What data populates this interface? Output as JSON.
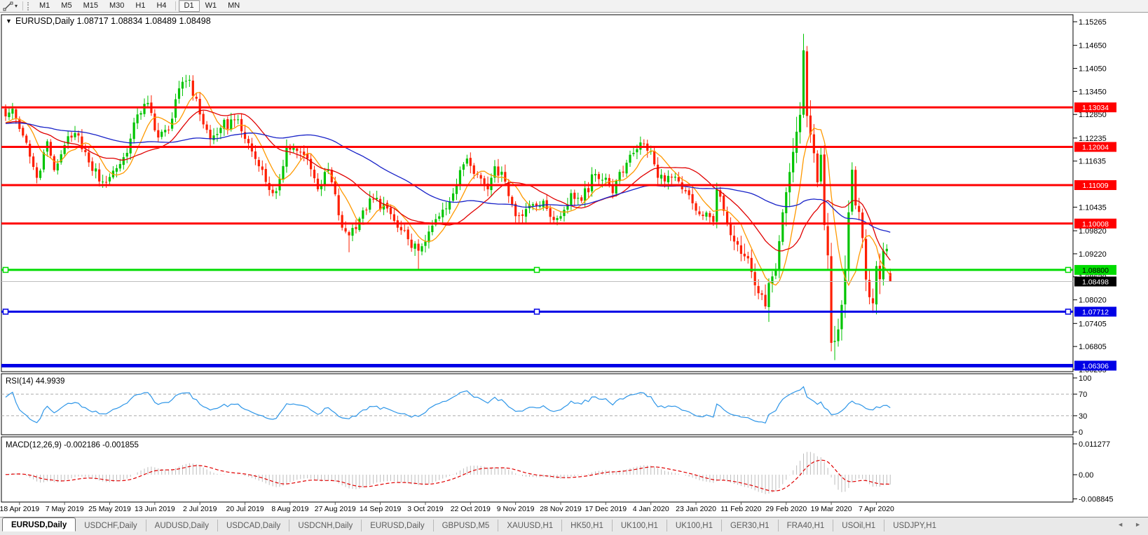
{
  "icons": {
    "dropdown_glyph": "▾",
    "symbol_marker_glyph": "▼",
    "tab_scroll_left_glyph": "◄",
    "tab_scroll_right_glyph": "►"
  },
  "toolbar": {
    "timeframes": [
      "M1",
      "M5",
      "M15",
      "M30",
      "H1",
      "H4",
      "D1",
      "W1",
      "MN"
    ],
    "selected_timeframe": "D1"
  },
  "chart_header": {
    "symbol": "EURUSD,Daily",
    "open": "1.08717",
    "high": "1.08834",
    "low": "1.08489",
    "close": "1.08498",
    "title_full": "EURUSD,Daily  1.08717 1.08834 1.08489 1.08498"
  },
  "price_axis": {
    "ticks": [
      "1.15265",
      "1.14650",
      "1.14050",
      "1.13450",
      "1.12850",
      "1.12235",
      "1.11635",
      "1.10435",
      "1.09820",
      "1.09220",
      "1.08620",
      "1.08020",
      "1.07405",
      "1.06805",
      "1.06205"
    ]
  },
  "date_axis": {
    "ticks": [
      {
        "label": "18 Apr 2019",
        "index": 4
      },
      {
        "label": "7 May 2019",
        "index": 17
      },
      {
        "label": "25 May 2019",
        "index": 30
      },
      {
        "label": "13 Jun 2019",
        "index": 43
      },
      {
        "label": "2 Jul 2019",
        "index": 56
      },
      {
        "label": "20 Jul 2019",
        "index": 69
      },
      {
        "label": "8 Aug 2019",
        "index": 82
      },
      {
        "label": "27 Aug 2019",
        "index": 95
      },
      {
        "label": "14 Sep 2019",
        "index": 108
      },
      {
        "label": "3 Oct 2019",
        "index": 121
      },
      {
        "label": "22 Oct 2019",
        "index": 134
      },
      {
        "label": "9 Nov 2019",
        "index": 147
      },
      {
        "label": "28 Nov 2019",
        "index": 160
      },
      {
        "label": "17 Dec 2019",
        "index": 173
      },
      {
        "label": "4 Jan 2020",
        "index": 186
      },
      {
        "label": "23 Jan 2020",
        "index": 199
      },
      {
        "label": "11 Feb 2020",
        "index": 212
      },
      {
        "label": "29 Feb 2020",
        "index": 225
      },
      {
        "label": "19 Mar 2020",
        "index": 238
      },
      {
        "label": "7 Apr 2020",
        "index": 251
      }
    ]
  },
  "chart_data": {
    "type": "candlestick",
    "symbol": "EURUSD",
    "timeframe": "Daily",
    "candle_count": 256,
    "last_candle": {
      "open": 1.08717,
      "high": 1.08834,
      "low": 1.08489,
      "close": 1.08498
    },
    "close_waypoints": [
      [
        0,
        1.128
      ],
      [
        2,
        1.13
      ],
      [
        5,
        1.123
      ],
      [
        9,
        1.112
      ],
      [
        12,
        1.1215
      ],
      [
        14,
        1.114
      ],
      [
        17,
        1.1205
      ],
      [
        21,
        1.123
      ],
      [
        24,
        1.116
      ],
      [
        28,
        1.111
      ],
      [
        32,
        1.1145
      ],
      [
        35,
        1.1185
      ],
      [
        38,
        1.1285
      ],
      [
        41,
        1.1315
      ],
      [
        44,
        1.1225
      ],
      [
        47,
        1.1245
      ],
      [
        51,
        1.137
      ],
      [
        53,
        1.1375
      ],
      [
        56,
        1.1285
      ],
      [
        59,
        1.122
      ],
      [
        62,
        1.125
      ],
      [
        66,
        1.127
      ],
      [
        70,
        1.121
      ],
      [
        73,
        1.115
      ],
      [
        77,
        1.108
      ],
      [
        78,
        1.1085
      ],
      [
        81,
        1.12
      ],
      [
        84,
        1.119
      ],
      [
        87,
        1.117
      ],
      [
        90,
        1.109
      ],
      [
        93,
        1.114
      ],
      [
        97,
        1.099
      ],
      [
        99,
        1.097
      ],
      [
        103,
        1.1035
      ],
      [
        106,
        1.1065
      ],
      [
        110,
        1.104
      ],
      [
        113,
        1.099
      ],
      [
        116,
        1.096
      ],
      [
        119,
        1.093
      ],
      [
        122,
        1.098
      ],
      [
        127,
        1.104
      ],
      [
        131,
        1.114
      ],
      [
        133,
        1.117
      ],
      [
        136,
        1.113
      ],
      [
        139,
        1.109
      ],
      [
        141,
        1.115
      ],
      [
        144,
        1.111
      ],
      [
        147,
        1.102
      ],
      [
        151,
        1.105
      ],
      [
        155,
        1.106
      ],
      [
        158,
        1.101
      ],
      [
        160,
        1.102
      ],
      [
        163,
        1.108
      ],
      [
        166,
        1.106
      ],
      [
        170,
        1.113
      ],
      [
        173,
        1.112
      ],
      [
        175,
        1.108
      ],
      [
        180,
        1.118
      ],
      [
        183,
        1.1212
      ],
      [
        186,
        1.119
      ],
      [
        188,
        1.112
      ],
      [
        191,
        1.1125
      ],
      [
        195,
        1.109
      ],
      [
        200,
        1.1025
      ],
      [
        204,
        1.1005
      ],
      [
        205,
        1.109
      ],
      [
        208,
        1.1
      ],
      [
        211,
        1.0946
      ],
      [
        214,
        1.091
      ],
      [
        216,
        1.084
      ],
      [
        219,
        1.0785
      ],
      [
        220,
        1.0846
      ],
      [
        222,
        1.088
      ],
      [
        224,
        1.103
      ],
      [
        226,
        1.1135
      ],
      [
        228,
        1.124
      ],
      [
        229,
        1.1284
      ],
      [
        230,
        1.1452
      ],
      [
        231,
        1.1281
      ],
      [
        233,
        1.1184
      ],
      [
        234,
        1.1108
      ],
      [
        235,
        1.118
      ],
      [
        236,
        1.0997
      ],
      [
        237,
        1.0918
      ],
      [
        238,
        1.069
      ],
      [
        239,
        1.0695
      ],
      [
        240,
        1.0725
      ],
      [
        241,
        1.0789
      ],
      [
        242,
        1.088
      ],
      [
        243,
        1.103
      ],
      [
        244,
        1.1141
      ],
      [
        245,
        1.1048
      ],
      [
        246,
        1.1031
      ],
      [
        247,
        1.0963
      ],
      [
        248,
        1.0855
      ],
      [
        249,
        1.0809
      ],
      [
        250,
        1.0793
      ],
      [
        251,
        1.089
      ],
      [
        252,
        1.0856
      ],
      [
        253,
        1.093
      ],
      [
        254,
        1.0935
      ],
      [
        255,
        1.08498
      ]
    ],
    "wick_overrides": {
      "99": {
        "low": 1.0926
      },
      "119": {
        "low": 1.0882
      },
      "219": {
        "low": 1.0778
      },
      "230": {
        "high": 1.1495
      },
      "239": {
        "low": 1.0645
      },
      "250": {
        "low": 1.0768
      }
    },
    "colors": {
      "up": "#00C400",
      "down": "#FE1E00"
    },
    "moving_averages": [
      {
        "name": "fast",
        "period": 8,
        "color": "#FF9900"
      },
      {
        "name": "medium",
        "period": 21,
        "color": "#E00000"
      },
      {
        "name": "slow",
        "period": 55,
        "color": "#1822C8"
      }
    ],
    "hlines": [
      {
        "price": 1.13034,
        "label": "1.13034",
        "color": "#FF0000",
        "text_color": "#FFFFFF",
        "width": 3,
        "handles": false
      },
      {
        "price": 1.12004,
        "label": "1.12004",
        "color": "#FF0000",
        "text_color": "#FFFFFF",
        "width": 3,
        "handles": false
      },
      {
        "price": 1.11009,
        "label": "1.11009",
        "color": "#FF0000",
        "text_color": "#FFFFFF",
        "width": 3,
        "handles": false
      },
      {
        "price": 1.10008,
        "label": "1.10008",
        "color": "#FF0000",
        "text_color": "#FFFFFF",
        "width": 3,
        "handles": false
      },
      {
        "price": 1.088,
        "label": "1.08800",
        "color": "#00DC00",
        "text_color": "#000000",
        "width": 3,
        "handles": true
      },
      {
        "price": 1.07712,
        "label": "1.07712",
        "color": "#0000E6",
        "text_color": "#FFFFFF",
        "width": 3,
        "handles": true
      },
      {
        "price": 1.06306,
        "label": "1.06306",
        "color": "#0000E6",
        "text_color": "#FFFFFF",
        "width": 5,
        "handles": false
      }
    ],
    "current_price": {
      "value": 1.08498,
      "label": "1.08498",
      "line_color": "#BEBEBE",
      "box_color": "#000000",
      "text_color": "#FFFFFF"
    },
    "indicators": {
      "rsi": {
        "label": "RSI(14) 44.9939",
        "period": 14,
        "value": "44.9939",
        "color": "#2E96E8",
        "levels": [
          {
            "value": 100,
            "label": "100",
            "dashed": false
          },
          {
            "value": 70,
            "label": "70",
            "dashed": true
          },
          {
            "value": 30,
            "label": "30",
            "dashed": true
          },
          {
            "value": 0,
            "label": "0",
            "dashed": false
          }
        ]
      },
      "macd": {
        "label": "MACD(12,26,9) -0.002186 -0.001855",
        "fast": 12,
        "slow": 26,
        "signal": 9,
        "main_value": "-0.002186",
        "signal_value": "-0.001855",
        "histogram_color": "#BDBDBD",
        "signal_color": "#E00000",
        "scale": [
          {
            "value": 0.011277,
            "label": "0.011277"
          },
          {
            "value": 0,
            "label": "0.00"
          },
          {
            "value": -0.008845,
            "label": "-0.008845"
          }
        ]
      }
    }
  },
  "tabs": {
    "items": [
      "EURUSD,Daily",
      "USDCHF,Daily",
      "AUDUSD,Daily",
      "USDCAD,Daily",
      "USDCNH,Daily",
      "EURUSD,Daily",
      "GBPUSD,M5",
      "XAUUSD,H1",
      "HK50,H1",
      "UK100,H1",
      "UK100,H1",
      "GER30,H1",
      "FRA40,H1",
      "USOil,H1",
      "USDJPY,H1"
    ],
    "active_index": 0
  }
}
